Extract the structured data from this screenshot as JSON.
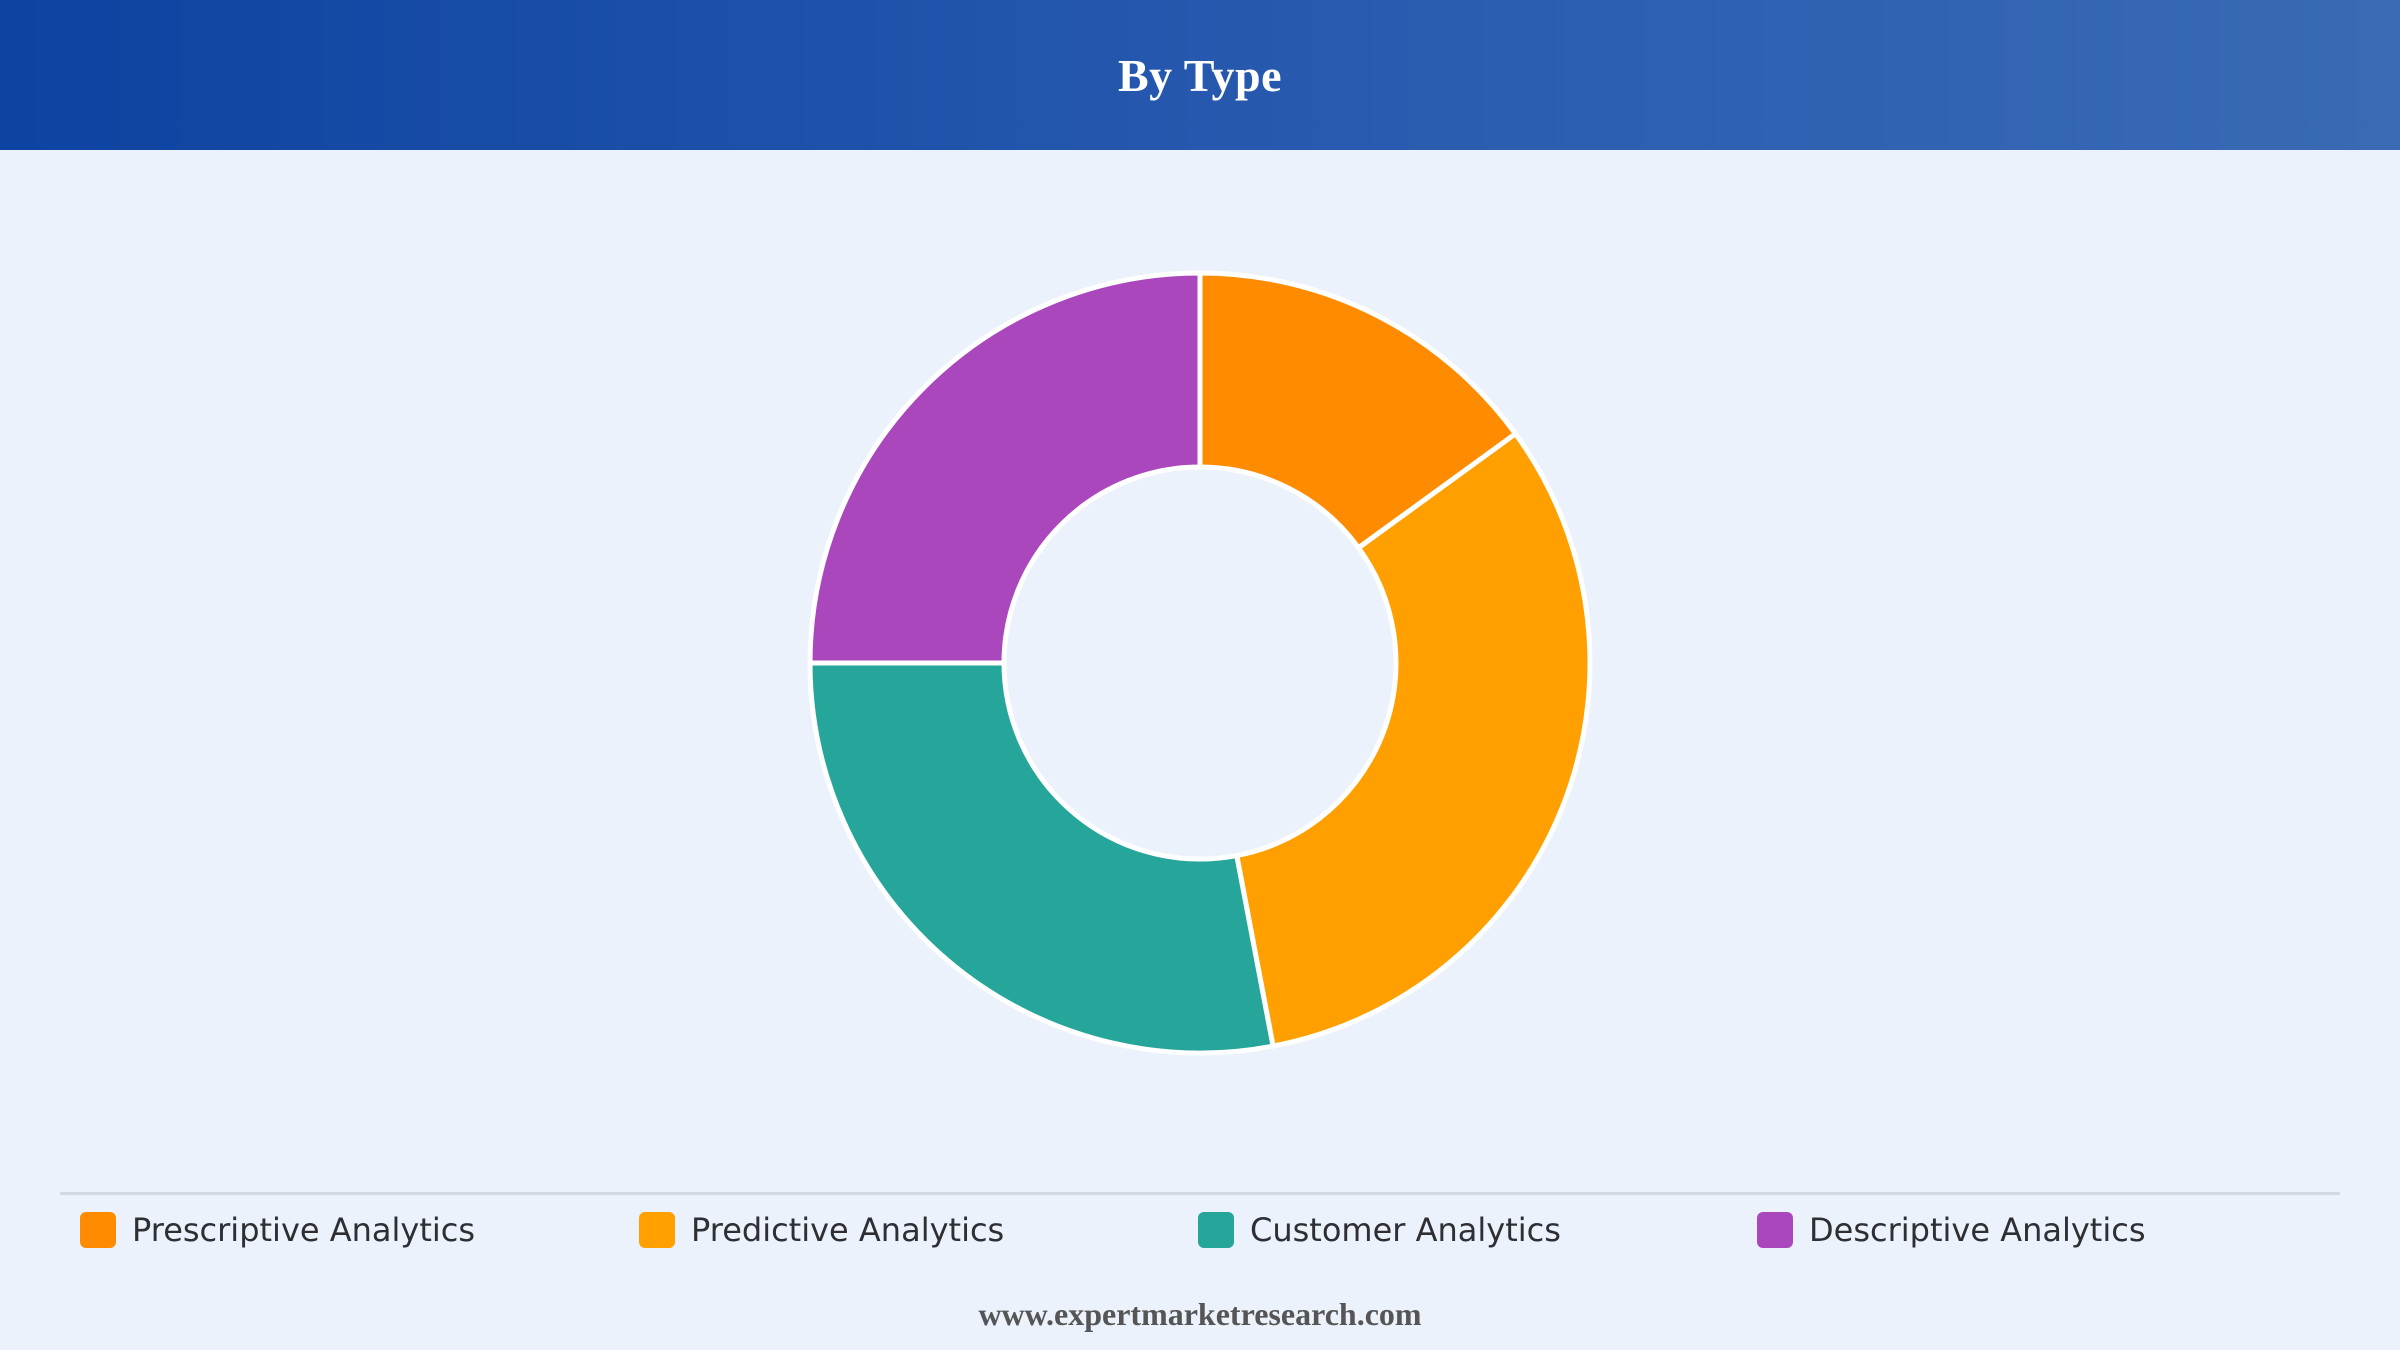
{
  "header": {
    "title": "By Type"
  },
  "chart_data": {
    "type": "pie",
    "title": "By Type",
    "donut": true,
    "legend_position": "bottom",
    "categories": [
      "Prescriptive Analytics",
      "Predictive Analytics",
      "Customer Analytics",
      "Descriptive Analytics"
    ],
    "values": [
      15,
      32,
      28,
      25
    ],
    "colors": [
      "#ff8c00",
      "#ffa000",
      "#26a69a",
      "#ab47bc"
    ]
  },
  "legend": {
    "items": [
      {
        "label": "Prescriptive Analytics",
        "color": "#ff8c00"
      },
      {
        "label": "Predictive Analytics",
        "color": "#ffa000"
      },
      {
        "label": "Customer Analytics",
        "color": "#26a69a"
      },
      {
        "label": "Descriptive Analytics",
        "color": "#ab47bc"
      }
    ]
  },
  "footer": {
    "text": "www.expertmarketresearch.com"
  }
}
